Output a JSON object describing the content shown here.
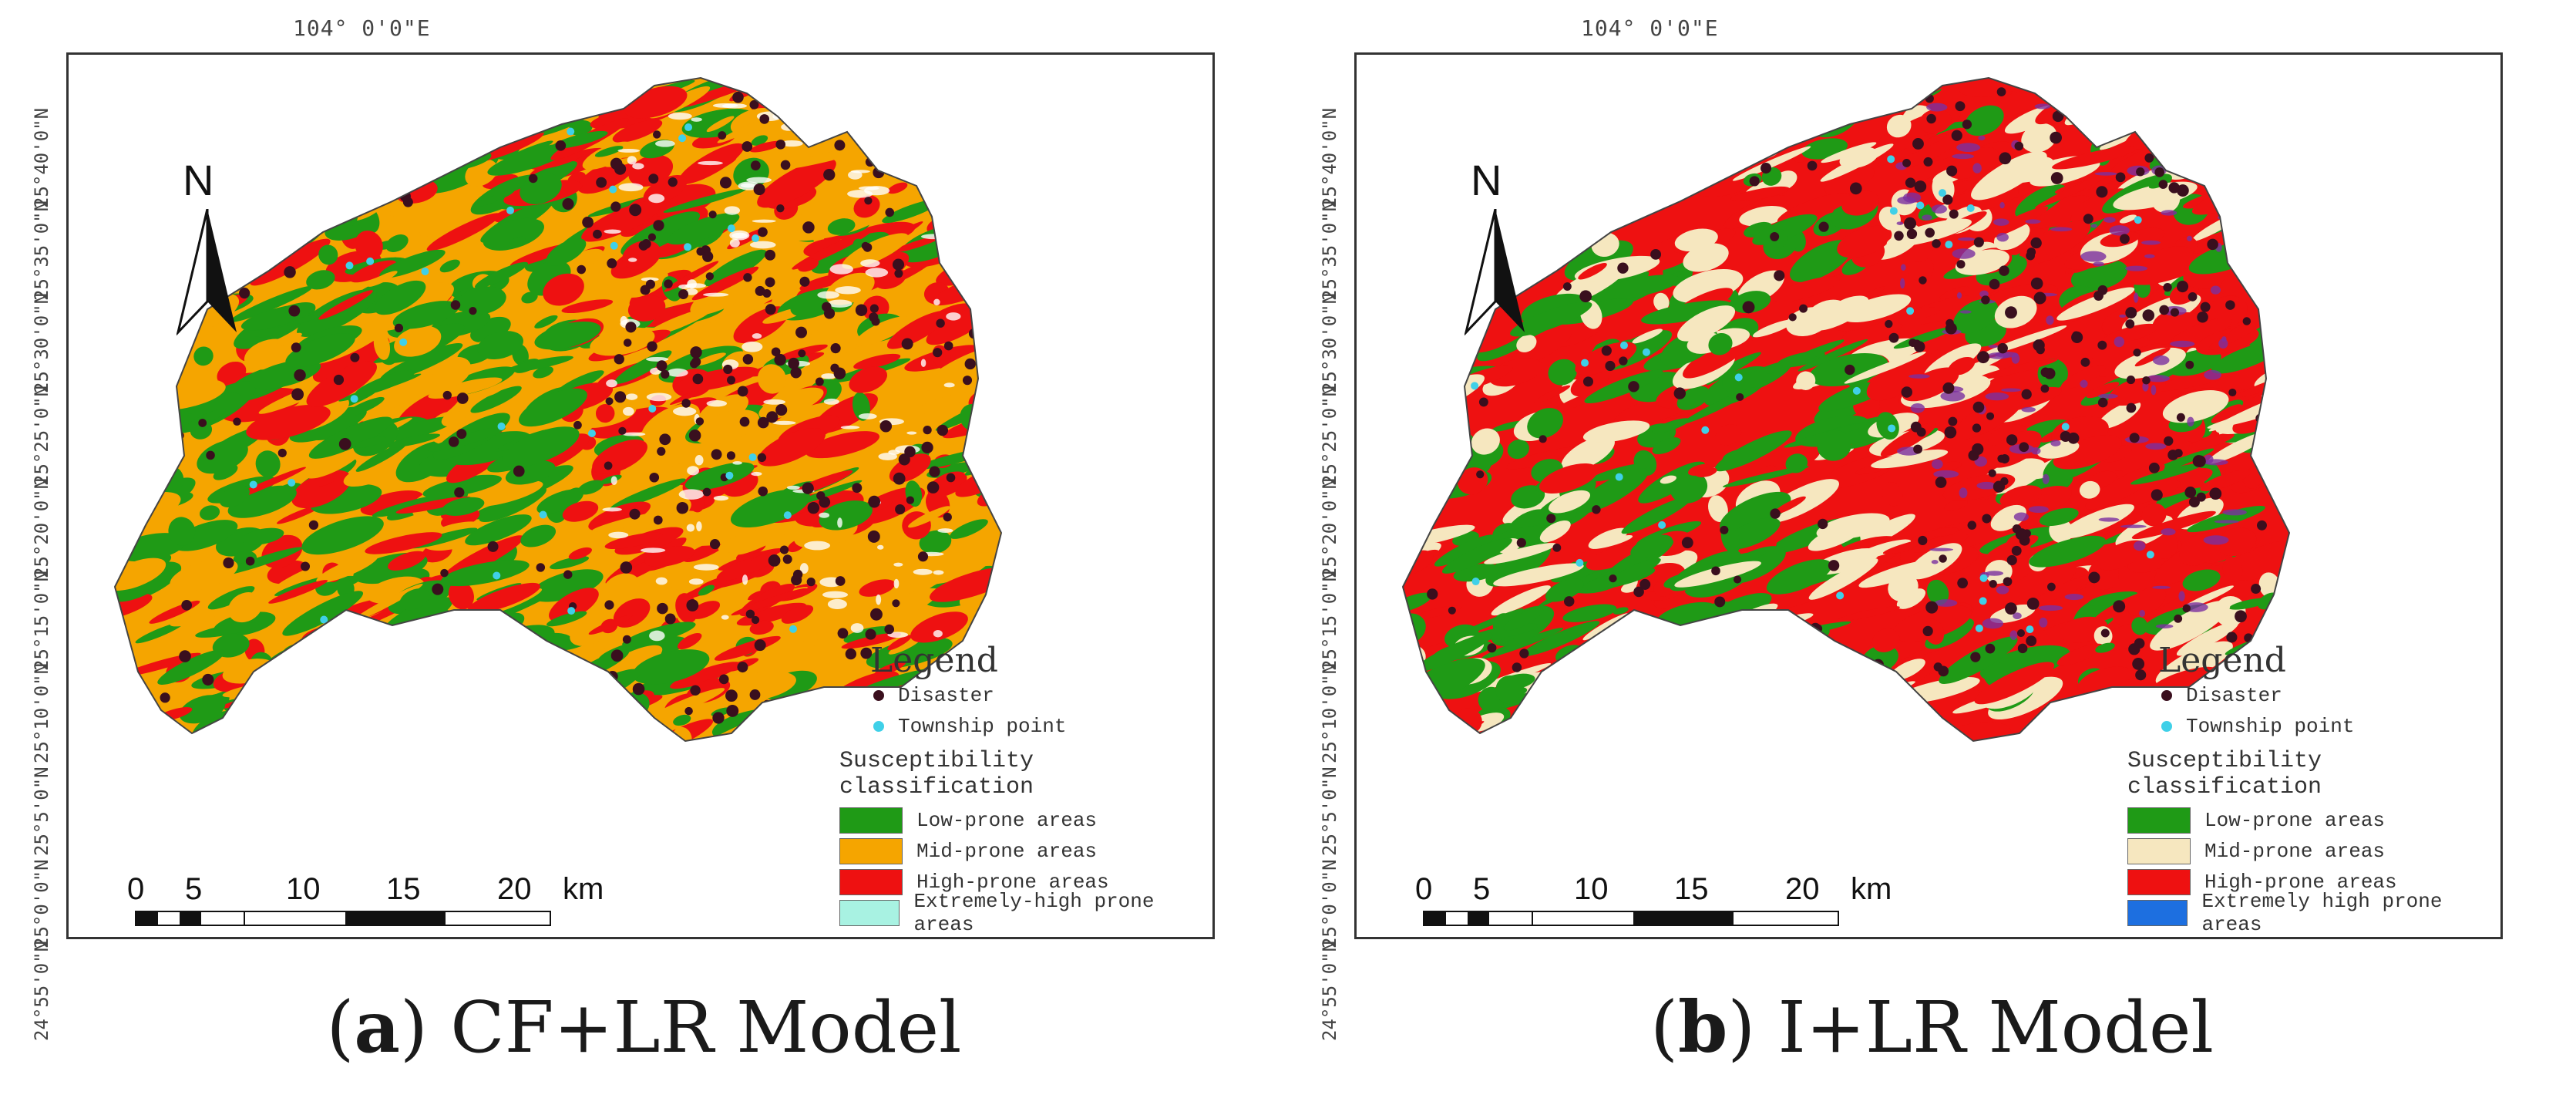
{
  "panels": [
    {
      "id": "a",
      "caption_letter": "a",
      "caption_text": "CF+LR Model",
      "top_coord": "104° 0'0\"E",
      "lat_labels": [
        "25°40'0\"N",
        "25°35'0\"N",
        "25°30'0\"N",
        "25°25'0\"N",
        "25°20'0\"N",
        "25°15'0\"N",
        "25°10'0\"N",
        "25°5'0\"N",
        "25°0'0\"N",
        "24°55'0\"N"
      ],
      "legend": {
        "title": "Legend",
        "disaster": "Disaster",
        "township": "Township point",
        "classification_title": "Susceptibility classification",
        "classes": [
          {
            "label": "Low-prone areas",
            "color": "#1f9a16"
          },
          {
            "label": "Mid-prone areas",
            "color": "#f5a500"
          },
          {
            "label": "High-prone areas",
            "color": "#ee1111"
          },
          {
            "label": "Extremely-high prone areas",
            "color": "#a8f2e2"
          }
        ]
      },
      "palette": [
        "#1f9a16",
        "#f5a500",
        "#ee1111"
      ]
    },
    {
      "id": "b",
      "caption_letter": "b",
      "caption_text": "I+LR Model",
      "top_coord": "104° 0'0\"E",
      "lat_labels": [
        "25°40'0\"N",
        "25°35'0\"N",
        "25°30'0\"N",
        "25°25'0\"N",
        "25°20'0\"N",
        "25°15'0\"N",
        "25°10'0\"N",
        "25°5'0\"N",
        "25°0'0\"N",
        "24°55'0\"N"
      ],
      "legend": {
        "title": "Legend",
        "disaster": "Disaster",
        "township": "Township point",
        "classification_title": "Susceptibility classification",
        "classes": [
          {
            "label": "Low-prone areas",
            "color": "#1f9a16"
          },
          {
            "label": "Mid-prone areas",
            "color": "#f6e7bf"
          },
          {
            "label": "High-prone areas",
            "color": "#ee1111"
          },
          {
            "label": "Extremely high prone areas",
            "color": "#1d6fe0"
          }
        ]
      },
      "palette": [
        "#1f9a16",
        "#f6e7bf",
        "#ee1111"
      ]
    }
  ],
  "scale": {
    "ticks": [
      "0",
      "5",
      "10",
      "15",
      "20"
    ],
    "unit": "km"
  },
  "north_label": "N",
  "colors": {
    "disaster": "#3a0f1e",
    "township": "#3fd0e8",
    "frame": "#333333"
  }
}
